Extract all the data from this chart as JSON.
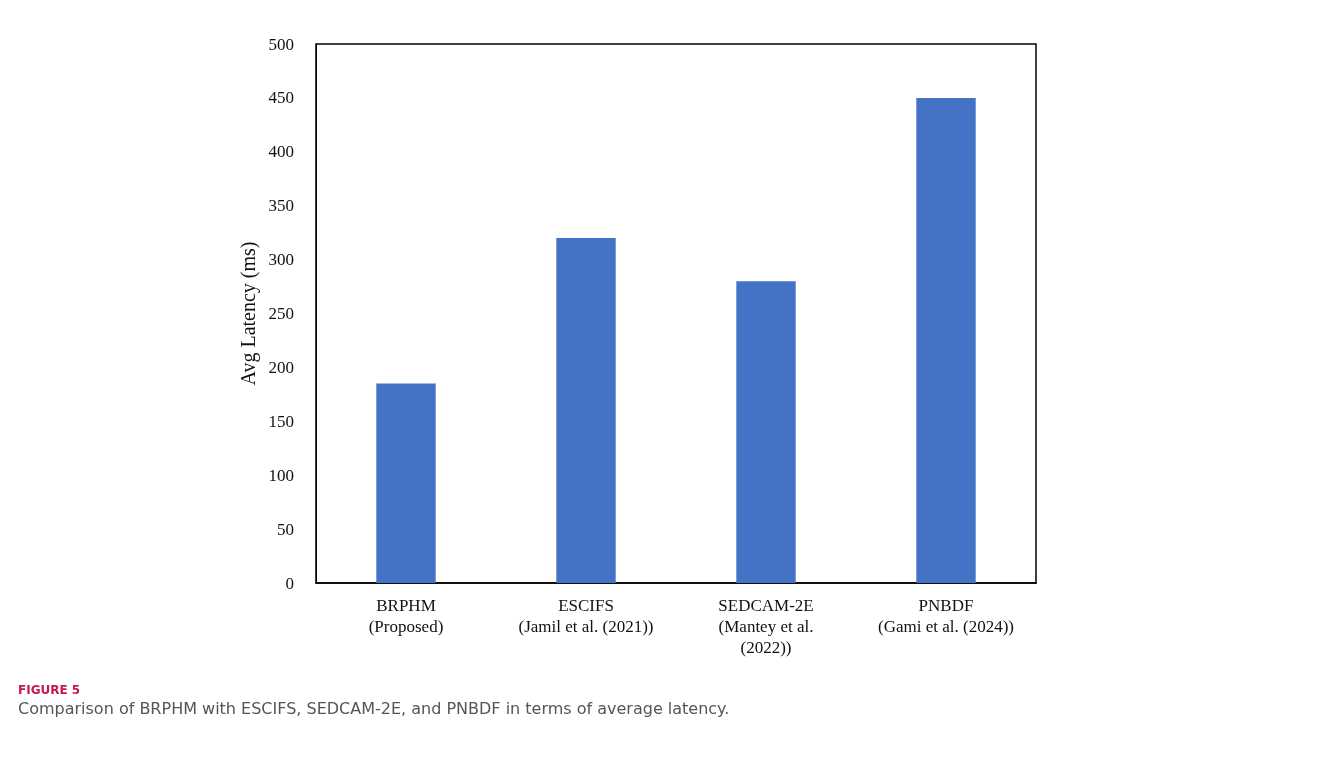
{
  "chart_data": {
    "type": "bar",
    "ylabel": "Avg Latency (ms)",
    "categories": [
      "BRPHM\n(Proposed)",
      "ESCIFS\n(Jamil et al. (2021))",
      "SEDCAM-2E\n(Mantey et al.\n(2022))",
      "PNBDF\n(Gami et al. (2024))"
    ],
    "values": [
      185,
      320,
      280,
      450
    ],
    "color": "#4472c4",
    "ylim": [
      0,
      500
    ],
    "yticks": [
      0,
      50,
      100,
      150,
      200,
      250,
      300,
      350,
      400,
      450,
      500
    ],
    "grid": false,
    "annotations": [
      "FIGURE 5",
      "Comparison of BRPHM with ESCIFS, SEDCAM-2E, and PNBDF in terms of average latency."
    ]
  }
}
